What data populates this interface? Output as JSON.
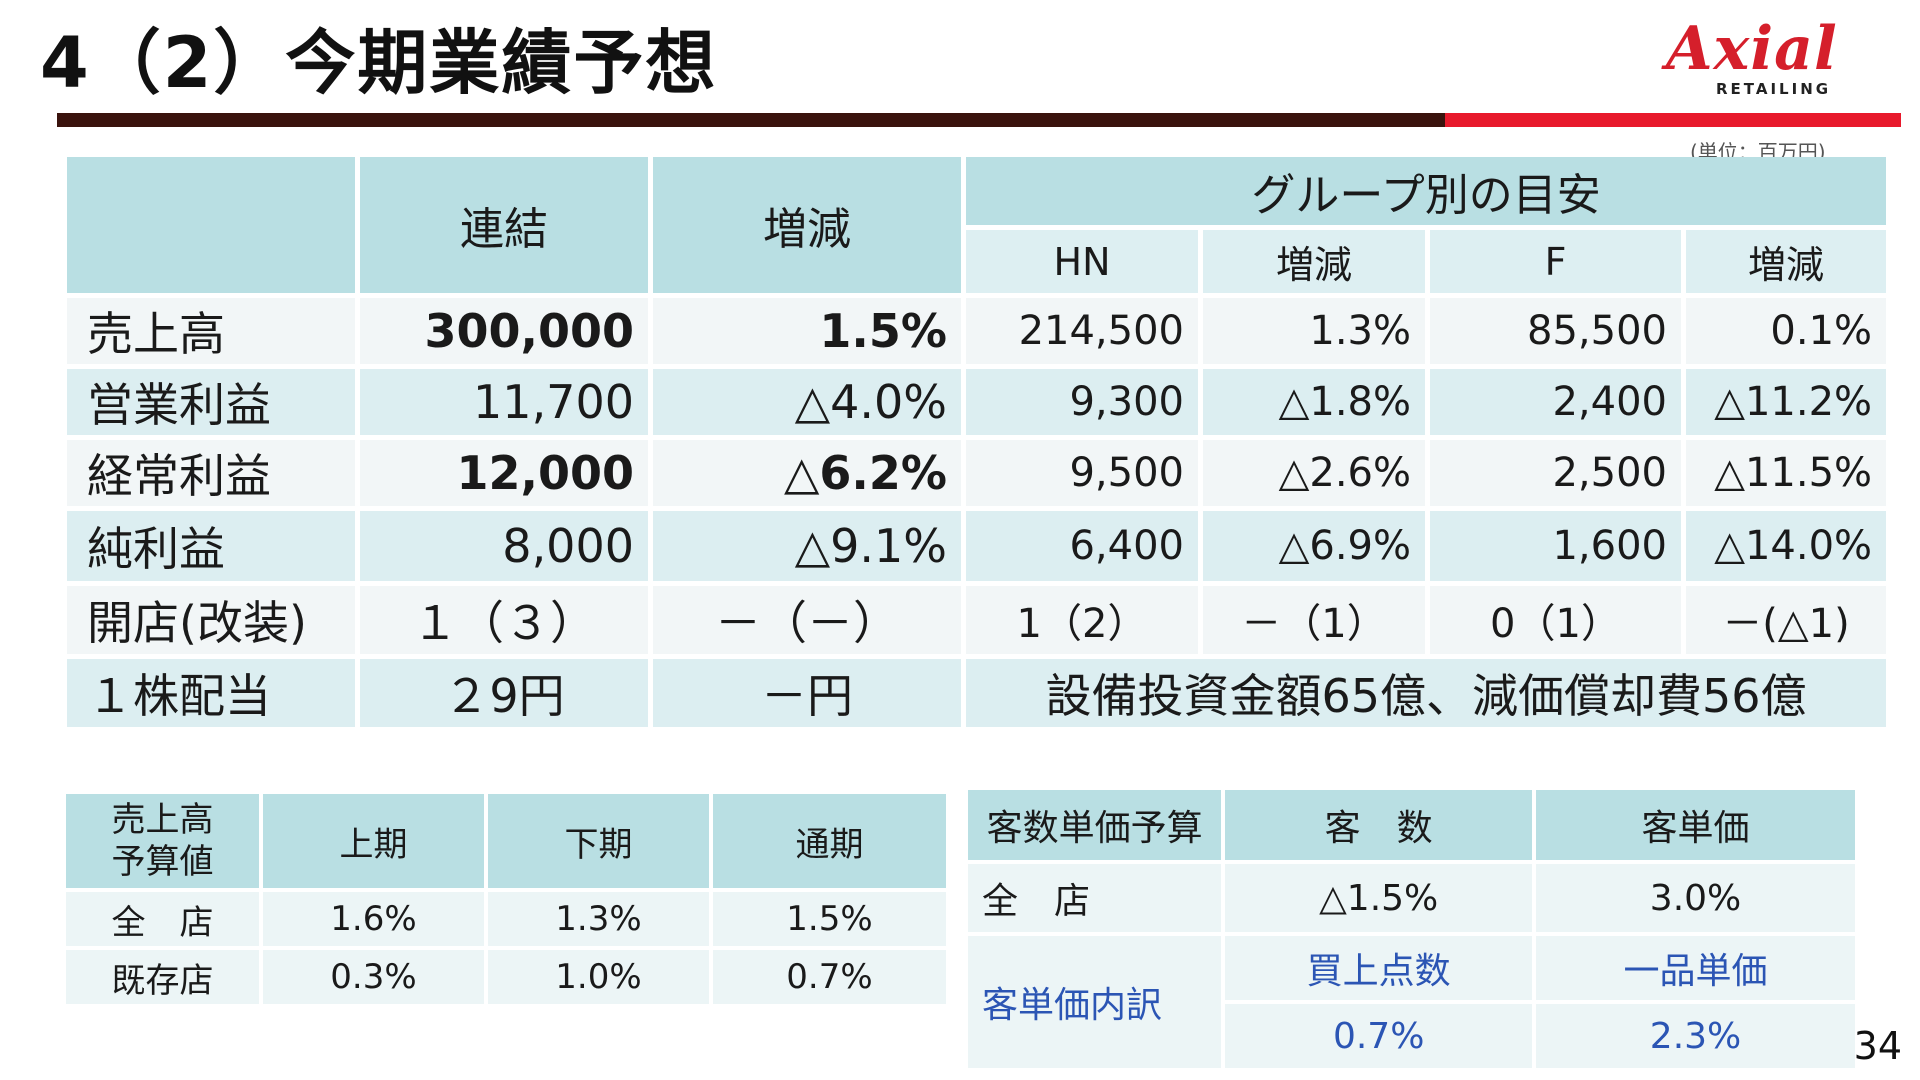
{
  "slide": {
    "title": "4（2）今期業績予想",
    "page_number": "34",
    "unit_note": "(単位：百万円)"
  },
  "logo": {
    "word": "Axial",
    "sub": "RETAILING"
  },
  "colors": {
    "header": "#b9dfe3",
    "rule_dark": "#3a130d",
    "rule_red": "#e8192c",
    "logo_red": "#d51f2b",
    "blue_text": "#2b55b4"
  },
  "main_table": {
    "headers": {
      "consolidated": "連結",
      "change": "増減",
      "group": "グループ別の目安"
    },
    "subheaders": [
      "HN",
      "増減",
      "F",
      "増減"
    ],
    "rows": [
      {
        "label": "売上高",
        "cons": "300,000",
        "chg": "1.5%",
        "hn": "214,500",
        "hn_chg": "1.3%",
        "f": "85,500",
        "f_chg": "0.1%"
      },
      {
        "label": "営業利益",
        "cons": "11,700",
        "chg": "△4.0%",
        "hn": "9,300",
        "hn_chg": "△1.8%",
        "f": "2,400",
        "f_chg": "△11.2%"
      },
      {
        "label": "経常利益",
        "cons": "12,000",
        "chg": "△6.2%",
        "hn": "9,500",
        "hn_chg": "△2.6%",
        "f": "2,500",
        "f_chg": "△11.5%"
      },
      {
        "label": "純利益",
        "cons": "8,000",
        "chg": "△9.1%",
        "hn": "6,400",
        "hn_chg": "△6.9%",
        "f": "1,600",
        "f_chg": "△14.0%"
      },
      {
        "label": "開店(改装)",
        "cons": "１（３）",
        "chg": "－（－）",
        "hn": "1（2）",
        "hn_chg": "－（1）",
        "f": "0（1）",
        "f_chg": "－(△1)"
      }
    ],
    "dividend": {
      "label": "１株配当",
      "cons": "２9円",
      "chg": "－円",
      "note": "設備投資金額65億、減価償却費56億"
    }
  },
  "budget_table": {
    "header_label_line1": "売上高",
    "header_label_line2": "予算値",
    "headers": [
      "上期",
      "下期",
      "通期"
    ],
    "rows": [
      {
        "label": "全　店",
        "values": [
          "1.6%",
          "1.3%",
          "1.5%"
        ]
      },
      {
        "label": "既存店",
        "values": [
          "0.3%",
          "1.0%",
          "0.7%"
        ]
      }
    ]
  },
  "customer_table": {
    "headers": [
      "客数単価予算",
      "客　数",
      "客単価"
    ],
    "all_store": {
      "label": "全　店",
      "customers": "△1.5%",
      "unit_price": "3.0%"
    },
    "breakdown": {
      "label": "客単価内訳",
      "sub_headers": [
        "買上点数",
        "一品単価"
      ],
      "values": [
        "0.7%",
        "2.3%"
      ]
    }
  }
}
